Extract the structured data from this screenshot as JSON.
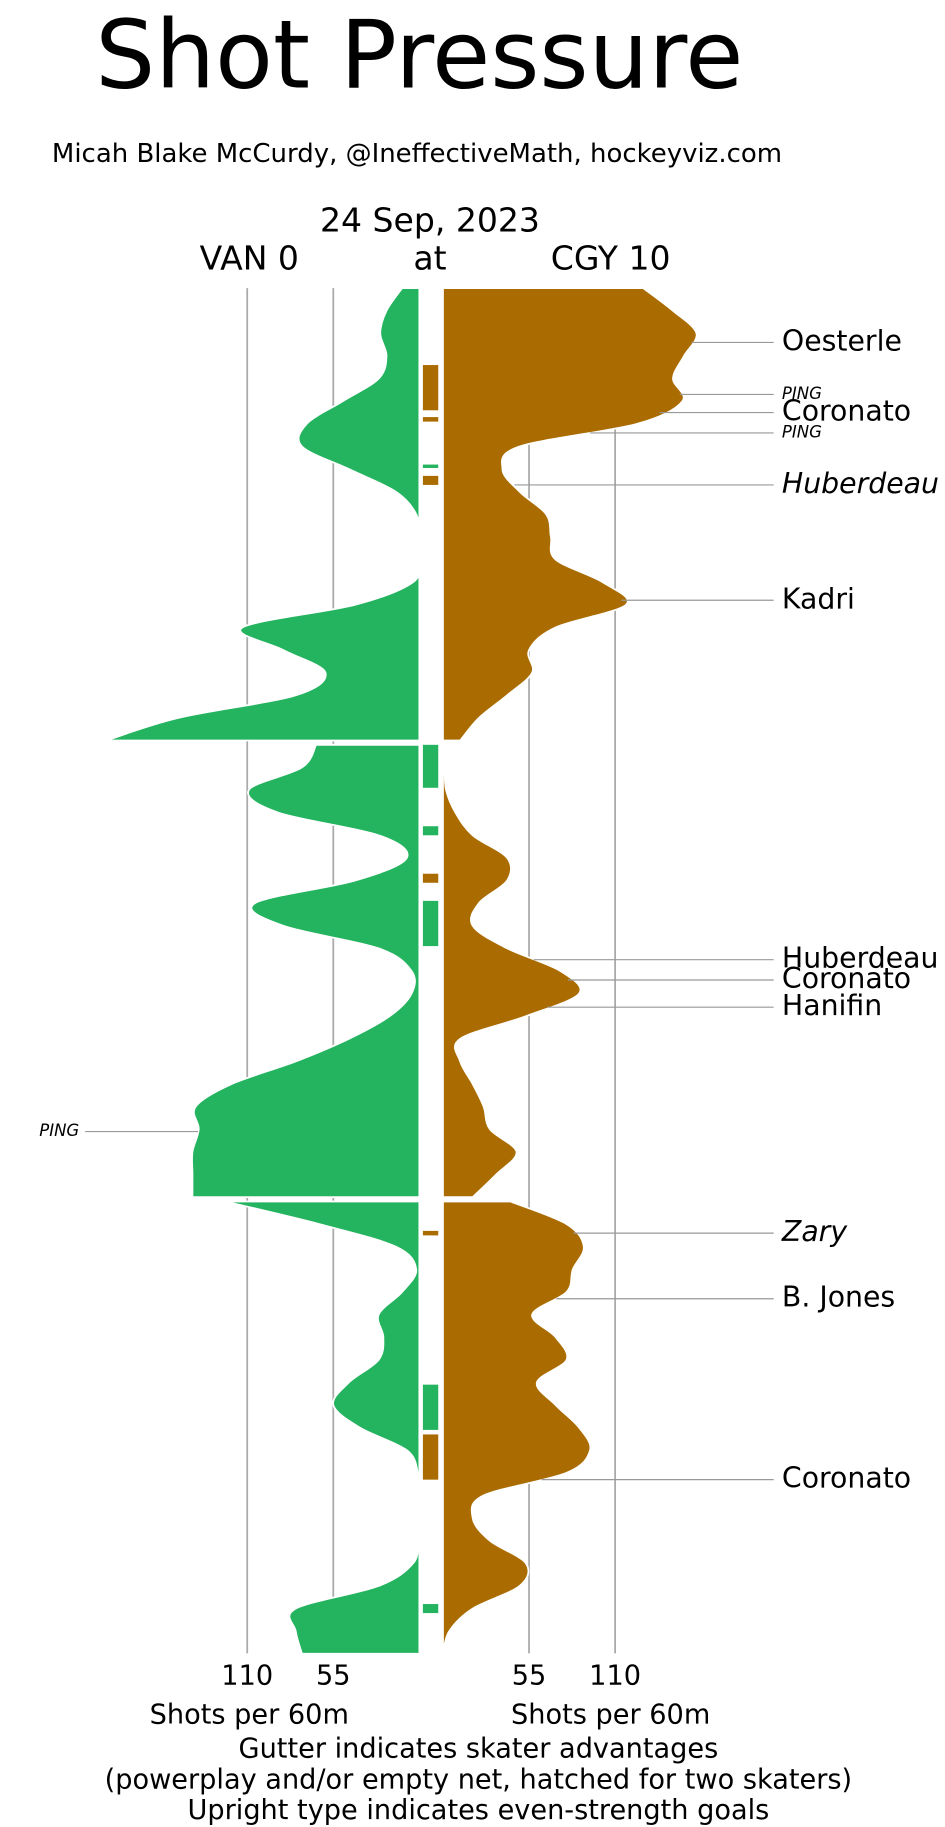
{
  "chart_data": {
    "type": "shot_pressure",
    "title": "Shot Pressure",
    "subtitle": "Micah Blake McCurdy, @IneffectiveMath, hockeyviz.com",
    "date": "24 Sep, 2023",
    "away": {
      "label": "VAN 0",
      "color": "#24b35f"
    },
    "connector": "at",
    "home": {
      "label": "CGY 10",
      "color": "#aa6c00"
    },
    "xlim": [
      0,
      200
    ],
    "xticks": [
      55,
      110
    ],
    "x_label": "Shots per 60m",
    "time_lim": [
      0,
      20
    ],
    "minutes": [
      0,
      1,
      2,
      3,
      4,
      5,
      6,
      7,
      8,
      9,
      10,
      11,
      12,
      13,
      14,
      15,
      16,
      17,
      18,
      19,
      20
    ],
    "grid": true,
    "periods": [
      {
        "away": [
          11,
          21,
          25,
          21,
          26,
          49,
          72,
          75,
          45,
          15,
          2,
          1,
          1,
          4,
          41,
          113,
          87,
          60,
          79,
          154,
          200
        ],
        "home": [
          128,
          147,
          162,
          154,
          147,
          153,
          124,
          49,
          38,
          49,
          66,
          69,
          72,
          102,
          117,
          72,
          55,
          57,
          41,
          23,
          11
        ],
        "gutter": [
          {
            "team": "home",
            "start": 3.4,
            "end": 5.4
          },
          {
            "team": "home",
            "start": 5.7,
            "end": 5.9
          },
          {
            "team": "away",
            "start": 7.8,
            "end": 7.95
          },
          {
            "team": "home",
            "start": 8.3,
            "end": 8.7
          }
        ],
        "goals": [
          {
            "team": "home",
            "label": "Oesterle",
            "time": 2.4,
            "italic": false
          },
          {
            "team": "home",
            "label": "Coronato",
            "time": 5.5,
            "italic": false
          },
          {
            "team": "home",
            "label": "Huberdeau",
            "time": 8.7,
            "italic": true
          },
          {
            "team": "home",
            "label": "Kadri",
            "time": 13.8,
            "italic": false
          }
        ],
        "pings": [
          {
            "team": "home",
            "label": "PING",
            "time": 4.7
          },
          {
            "team": "home",
            "label": "PING",
            "time": 6.4
          }
        ]
      },
      {
        "away": [
          66,
          75,
          109,
          90,
          26,
          8,
          41,
          105,
          87,
          26,
          5,
          5,
          19,
          45,
          79,
          120,
          143,
          141,
          145,
          145,
          145
        ],
        "home": [
          0,
          1,
          2,
          8,
          19,
          41,
          41,
          23,
          19,
          41,
          75,
          87,
          53,
          11,
          11,
          19,
          26,
          30,
          47,
          34,
          19
        ],
        "gutter": [
          {
            "team": "away",
            "start": 0,
            "end": 1.9
          },
          {
            "team": "away",
            "start": 3.6,
            "end": 4.0
          },
          {
            "team": "home",
            "start": 5.7,
            "end": 6.1
          },
          {
            "team": "away",
            "start": 6.9,
            "end": 8.9
          }
        ],
        "goals": [
          {
            "team": "home",
            "label": "Huberdeau",
            "time": 9.5,
            "italic": false
          },
          {
            "team": "home",
            "label": "Coronato",
            "time": 10.4,
            "italic": false
          },
          {
            "team": "home",
            "label": "Hanifin",
            "time": 11.6,
            "italic": false
          }
        ],
        "pings": [
          {
            "team": "away",
            "label": "PING",
            "time": 17.1
          }
        ]
      },
      {
        "away": [
          124,
          64,
          15,
          2,
          11,
          26,
          23,
          26,
          45,
          55,
          38,
          8,
          1,
          1,
          1,
          1,
          4,
          26,
          79,
          79,
          75
        ],
        "home": [
          43,
          79,
          90,
          83,
          79,
          57,
          72,
          79,
          60,
          72,
          87,
          94,
          79,
          26,
          19,
          30,
          53,
          49,
          19,
          4,
          0
        ],
        "gutter": [
          {
            "team": "home",
            "start": 1.3,
            "end": 1.5
          },
          {
            "team": "away",
            "start": 8.1,
            "end": 10.1
          },
          {
            "team": "home",
            "start": 10.3,
            "end": 12.3
          },
          {
            "team": "away",
            "start": 17.8,
            "end": 18.2
          }
        ],
        "goals": [
          {
            "team": "home",
            "label": "Zary",
            "time": 1.4,
            "italic": true
          },
          {
            "team": "home",
            "label": "B. Jones",
            "time": 4.3,
            "italic": false
          },
          {
            "team": "home",
            "label": "Coronato",
            "time": 12.3,
            "italic": false
          }
        ],
        "pings": []
      }
    ],
    "notes": [
      "Gutter indicates skater advantages",
      "(powerplay and/or empty net, hatched for two skaters)",
      "Upright type indicates even-strength goals"
    ]
  }
}
